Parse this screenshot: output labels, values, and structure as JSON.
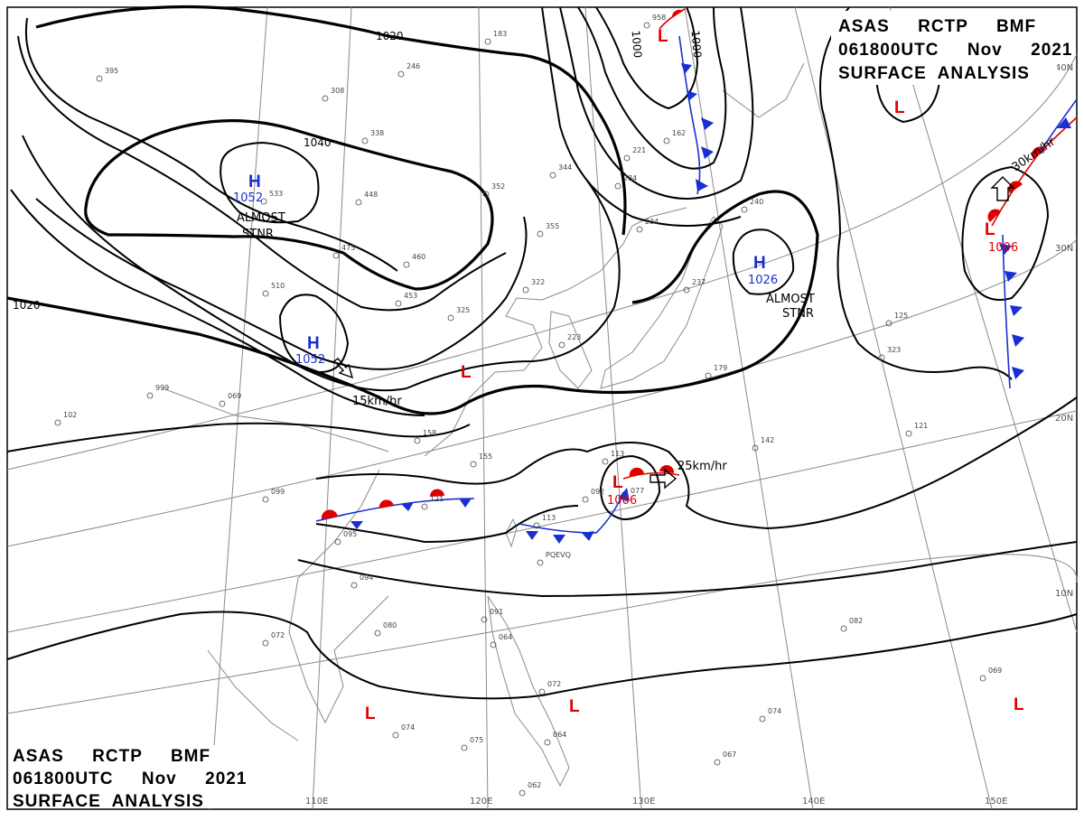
{
  "header": {
    "line1": "ASAS     RCTP     BMF",
    "line2": "061800UTC     Nov     2021",
    "line3": "SURFACE  ANALYSIS"
  },
  "longitude_labels": [
    "110E",
    "120E",
    "130E",
    "140E",
    "150E"
  ],
  "latitude_labels": [
    "40N",
    "30N",
    "20N",
    "10N"
  ],
  "isobar_labels": [
    "1020",
    "1040",
    "1000",
    "1000",
    "1020"
  ],
  "pressure_centers": [
    {
      "type": "H",
      "value": "1052",
      "note": "ALMOST\nSTNR"
    },
    {
      "type": "H",
      "value": "1052",
      "motion": "15km/hr"
    },
    {
      "type": "H",
      "value": "1026",
      "note": "ALMOST\nSTNR"
    },
    {
      "type": "L",
      "value": "1006",
      "motion": "25km/hr"
    },
    {
      "type": "L",
      "value": "1006",
      "motion": "30km/hr"
    },
    {
      "type": "L",
      "value": ""
    },
    {
      "type": "L",
      "value": ""
    },
    {
      "type": "L",
      "value": ""
    },
    {
      "type": "L",
      "value": ""
    },
    {
      "type": "L",
      "value": ""
    }
  ],
  "station_reports": [
    "533",
    "448",
    "475",
    "460",
    "510",
    "453",
    "325",
    "999",
    "069",
    "102",
    "099",
    "095",
    "094",
    "080",
    "072",
    "074",
    "075",
    "067",
    "082",
    "069",
    "074",
    "091",
    "064",
    "072",
    "064",
    "062",
    "113",
    "121",
    "155",
    "158",
    "092",
    "077",
    "113",
    "240",
    "237",
    "234",
    "284",
    "221",
    "162",
    "355",
    "352",
    "344",
    "338",
    "308",
    "246",
    "183",
    "958",
    "395",
    "322",
    "223",
    "179",
    "142",
    "121",
    "125",
    "323",
    "PQEVQ"
  ],
  "colors": {
    "high": "#1a2fd1",
    "low": "#e00000",
    "cold_front": "#1a2fd1",
    "warm_front": "#e00000",
    "isobar": "#000000",
    "grid": "#8a8a8a"
  }
}
